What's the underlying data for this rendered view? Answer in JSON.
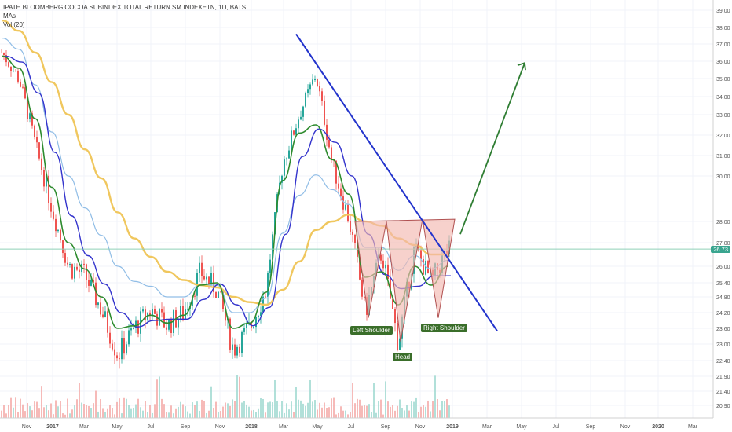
{
  "header": {
    "title": "IPATH BLOOMBERG COCOA SUBINDEX TOTAL RETURN SM INDEXETN, 1D, BATS",
    "line2": "MAs",
    "line3": "Vol (20)"
  },
  "colors": {
    "up": "#26a69a",
    "down": "#ef5350",
    "ma_fast": "#2e8b2e",
    "ma_mid": "#3333cc",
    "ma_light": "#90bde6",
    "ma_slow": "#f0c75e",
    "trendline": "#2233cc",
    "arrow": "#2e7d32",
    "pattern_fill": "#f2b8b0",
    "pattern_stroke": "#b05050",
    "hline": "#8fd0b8"
  },
  "annotations": {
    "left_shoulder": "Left Shoulder",
    "head": "Head",
    "right_shoulder": "Right Shoulder"
  },
  "chart_data": {
    "type": "candlestick",
    "title": "IPATH BLOOMBERG COCOA SUBINDEX TOTAL RETURN SM INDEXETN, 1D, BATS",
    "y_ticks": [
      "39.00",
      "38.00",
      "37.00",
      "36.00",
      "35.00",
      "34.00",
      "33.00",
      "32.00",
      "31.00",
      "30.00",
      "28.00",
      "27.00",
      "26.00",
      "25.40",
      "24.80",
      "24.20",
      "23.60",
      "23.00",
      "22.40",
      "21.90",
      "21.40",
      "20.90"
    ],
    "x_ticks": [
      "Nov",
      "2017",
      "Mar",
      "May",
      "Jul",
      "Sep",
      "Nov",
      "2018",
      "Mar",
      "May",
      "Jul",
      "Sep",
      "Nov",
      "2019",
      "Mar",
      "May",
      "Jul",
      "Sep",
      "Nov",
      "2020",
      "Mar"
    ],
    "current_price": "26.73",
    "price_path": [
      {
        "t": "Oct 2016",
        "v": 36.5
      },
      {
        "t": "Nov 2016",
        "v": 35.0
      },
      {
        "t": "Dec 2016",
        "v": 31.5
      },
      {
        "t": "Jan 2017",
        "v": 28.6
      },
      {
        "t": "Feb 2017",
        "v": 26.0
      },
      {
        "t": "Mar 2017",
        "v": 25.7
      },
      {
        "t": "Apr 2017",
        "v": 24.3
      },
      {
        "t": "May 2017",
        "v": 22.6
      },
      {
        "t": "Jun 2017",
        "v": 23.6
      },
      {
        "t": "Jul 2017",
        "v": 24.3
      },
      {
        "t": "Aug 2017",
        "v": 23.7
      },
      {
        "t": "Sep 2017",
        "v": 24.2
      },
      {
        "t": "Oct 2017",
        "v": 25.8
      },
      {
        "t": "Nov 2017",
        "v": 25.1
      },
      {
        "t": "Dec 2017",
        "v": 22.8
      },
      {
        "t": "Jan 2018",
        "v": 23.6
      },
      {
        "t": "Feb 2018",
        "v": 25.1
      },
      {
        "t": "Mar 2018",
        "v": 30.6
      },
      {
        "t": "Apr 2018",
        "v": 33.0
      },
      {
        "t": "May 2018",
        "v": 35.2
      },
      {
        "t": "Jun 2018",
        "v": 30.6
      },
      {
        "t": "Jul 2018",
        "v": 28.1
      },
      {
        "t": "Aug 2018",
        "v": 24.2
      },
      {
        "t": "Sep 2018",
        "v": 26.6
      },
      {
        "t": "Oct 2018",
        "v": 23.0
      },
      {
        "t": "Nov 2018",
        "v": 26.8
      },
      {
        "t": "Dec 2018",
        "v": 25.4
      },
      {
        "t": "Jan 2019",
        "v": 26.7
      }
    ],
    "moving_averages": [
      {
        "name": "MA fast",
        "values": [
          36.3,
          35.6,
          32.8,
          29.5,
          27.0,
          25.9,
          24.8,
          23.6,
          23.7,
          24.1,
          23.8,
          24.1,
          25.3,
          25.4,
          23.6,
          23.8,
          25.0,
          29.8,
          32.1,
          32.5,
          30.8,
          29.2,
          25.6,
          25.8,
          24.5,
          26.0,
          25.3,
          26.0
        ]
      },
      {
        "name": "MA slow",
        "values": [
          38.4,
          37.8,
          36.5,
          34.8,
          33.0,
          31.3,
          29.9,
          28.4,
          27.2,
          26.4,
          25.8,
          25.5,
          25.3,
          25.2,
          24.8,
          24.6,
          24.5,
          25.1,
          26.2,
          27.6,
          28.0,
          28.3,
          28.0,
          27.8,
          27.2,
          26.9,
          26.5,
          26.5
        ]
      }
    ],
    "trendline": {
      "from": {
        "t": "Feb 2018",
        "v": 37.6
      },
      "to": {
        "t": "Feb 2019",
        "v": 23.5
      }
    },
    "neckline": {
      "from": {
        "t": "Jul 2018",
        "v": 28.0
      },
      "to": {
        "t": "Dec 2018",
        "v": 28.1
      }
    },
    "pattern": {
      "left_shoulder": 24.0,
      "head": 23.1,
      "right_shoulder": 24.0
    },
    "arrow_target": {
      "t": "Apr 2019",
      "v": 35.9
    },
    "ylim": [
      20.6,
      39.3
    ],
    "grid": true
  }
}
